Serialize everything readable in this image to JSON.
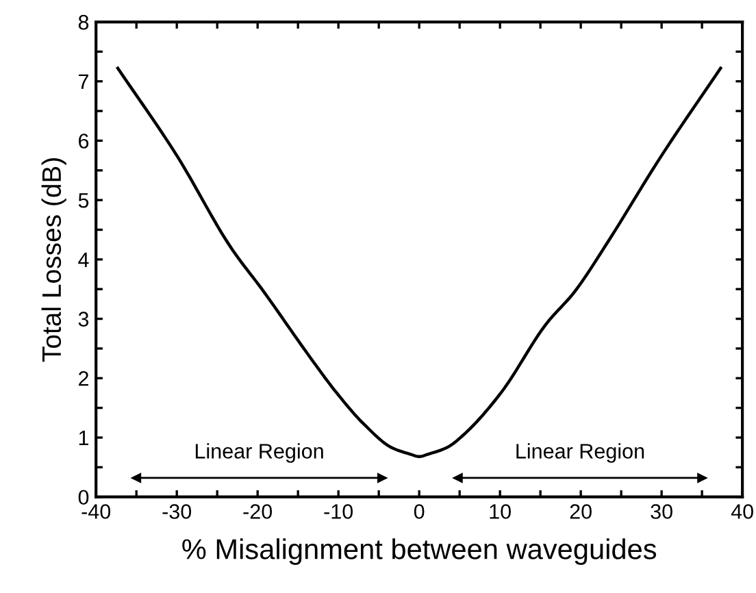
{
  "chart_data": {
    "type": "line",
    "xlabel": "% Misalignment between waveguides",
    "ylabel": "Total Losses (dB)",
    "x": [
      -37.3,
      -30,
      -23.4,
      -19.2,
      -13.6,
      -10.2,
      -6.8,
      -3.4,
      -1.1,
      0,
      1.1,
      3.4,
      5.6,
      10.1,
      15.7,
      19.2,
      23.0,
      30,
      37.3
    ],
    "series": [
      {
        "color": "#000000",
        "values": [
          7.22,
          5.75,
          4.22,
          3.45,
          2.37,
          1.75,
          1.22,
          0.83,
          0.72,
          0.68,
          0.72,
          0.83,
          1.06,
          1.75,
          2.91,
          3.45,
          4.22,
          5.75,
          7.22
        ]
      },
      {
        "x": [
          -35,
          -4.6
        ],
        "values": [
          0.32,
          0.32
        ],
        "color": "#000000",
        "marker": "triangle"
      },
      {
        "x": [
          4.8,
          35
        ],
        "values": [
          0.32,
          0.32
        ],
        "color": "#000000",
        "marker": "triangle"
      }
    ],
    "xlim": [
      -40,
      40
    ],
    "ylim": [
      0,
      8
    ],
    "xticks": [
      -40,
      {
        "value": -35,
        "label": null
      },
      -30,
      {
        "value": -25,
        "label": null
      },
      -20,
      {
        "value": -15,
        "label": null
      },
      -10,
      {
        "value": -5,
        "label": null
      },
      0,
      {
        "value": 5,
        "label": null
      },
      10,
      {
        "value": 15,
        "label": null
      },
      20,
      {
        "value": 25,
        "label": null
      },
      30,
      {
        "value": 35,
        "label": null
      },
      40
    ],
    "yticks": [
      0,
      {
        "value": 0.5,
        "label": null
      },
      1,
      {
        "value": 1.5,
        "label": null
      },
      2,
      {
        "value": 2.5,
        "label": null
      },
      3,
      {
        "value": 3.5,
        "label": null
      },
      4,
      {
        "value": 4.5,
        "label": null
      },
      5,
      {
        "value": 5.5,
        "label": null
      },
      6,
      {
        "value": 6.5,
        "label": null
      },
      7,
      {
        "value": 7.5,
        "label": null
      },
      8
    ],
    "annotations": [
      "Linear Region",
      "Linear Region"
    ],
    "grid": false,
    "legend": false,
    "marker": "none",
    "line_style": "solid"
  }
}
